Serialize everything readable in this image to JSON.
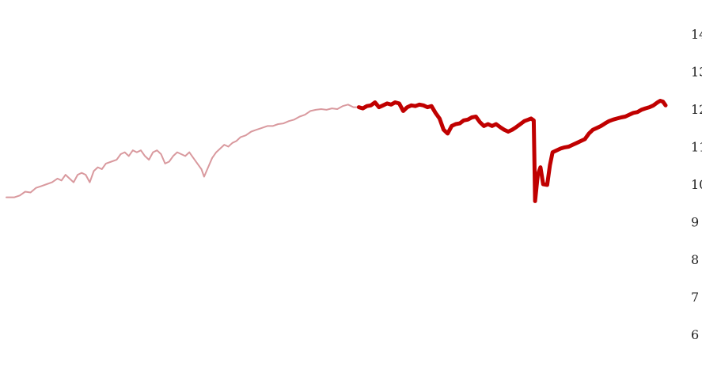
{
  "chart_data": {
    "type": "line",
    "title": "",
    "xlabel": "",
    "ylabel": "",
    "yaxis": {
      "position": "right",
      "ticks": [
        6,
        7,
        8,
        9,
        10,
        11,
        12,
        13,
        14
      ],
      "tick_labels": [
        "6",
        "7",
        "8",
        "9",
        "10",
        "11",
        "12",
        "13",
        "14"
      ],
      "range": [
        5.85,
        14.7
      ]
    },
    "xaxis": {
      "range": [
        0,
        1
      ],
      "labels_visible": false
    },
    "grid": false,
    "legend": "none",
    "colors": {
      "history": "#d9999e",
      "current": "#c00000"
    },
    "series": [
      {
        "role": "history",
        "points": [
          [
            0.0,
            9.65
          ],
          [
            0.012,
            9.65
          ],
          [
            0.02,
            9.7
          ],
          [
            0.028,
            9.8
          ],
          [
            0.036,
            9.78
          ],
          [
            0.044,
            9.9
          ],
          [
            0.052,
            9.95
          ],
          [
            0.06,
            10.0
          ],
          [
            0.068,
            10.05
          ],
          [
            0.076,
            10.15
          ],
          [
            0.082,
            10.1
          ],
          [
            0.088,
            10.25
          ],
          [
            0.094,
            10.15
          ],
          [
            0.1,
            10.05
          ],
          [
            0.106,
            10.25
          ],
          [
            0.112,
            10.3
          ],
          [
            0.118,
            10.25
          ],
          [
            0.124,
            10.05
          ],
          [
            0.13,
            10.35
          ],
          [
            0.136,
            10.45
          ],
          [
            0.142,
            10.4
          ],
          [
            0.148,
            10.55
          ],
          [
            0.156,
            10.6
          ],
          [
            0.164,
            10.65
          ],
          [
            0.17,
            10.8
          ],
          [
            0.176,
            10.85
          ],
          [
            0.182,
            10.75
          ],
          [
            0.188,
            10.9
          ],
          [
            0.194,
            10.85
          ],
          [
            0.2,
            10.9
          ],
          [
            0.206,
            10.75
          ],
          [
            0.212,
            10.65
          ],
          [
            0.218,
            10.85
          ],
          [
            0.224,
            10.9
          ],
          [
            0.23,
            10.8
          ],
          [
            0.236,
            10.55
          ],
          [
            0.242,
            10.6
          ],
          [
            0.248,
            10.75
          ],
          [
            0.254,
            10.85
          ],
          [
            0.26,
            10.8
          ],
          [
            0.266,
            10.75
          ],
          [
            0.272,
            10.85
          ],
          [
            0.278,
            10.7
          ],
          [
            0.284,
            10.55
          ],
          [
            0.29,
            10.4
          ],
          [
            0.294,
            10.2
          ],
          [
            0.3,
            10.45
          ],
          [
            0.306,
            10.7
          ],
          [
            0.312,
            10.85
          ],
          [
            0.318,
            10.95
          ],
          [
            0.324,
            11.05
          ],
          [
            0.33,
            11.0
          ],
          [
            0.336,
            11.1
          ],
          [
            0.342,
            11.15
          ],
          [
            0.348,
            11.25
          ],
          [
            0.356,
            11.3
          ],
          [
            0.364,
            11.4
          ],
          [
            0.372,
            11.45
          ],
          [
            0.38,
            11.5
          ],
          [
            0.388,
            11.55
          ],
          [
            0.396,
            11.55
          ],
          [
            0.404,
            11.6
          ],
          [
            0.412,
            11.62
          ],
          [
            0.42,
            11.68
          ],
          [
            0.428,
            11.72
          ],
          [
            0.436,
            11.8
          ],
          [
            0.444,
            11.85
          ],
          [
            0.452,
            11.95
          ],
          [
            0.46,
            11.98
          ],
          [
            0.468,
            12.0
          ],
          [
            0.476,
            11.98
          ],
          [
            0.484,
            12.02
          ],
          [
            0.492,
            12.0
          ],
          [
            0.5,
            12.08
          ],
          [
            0.508,
            12.12
          ],
          [
            0.516,
            12.05
          ],
          [
            0.524,
            12.05
          ]
        ]
      },
      {
        "role": "current",
        "points": [
          [
            0.524,
            12.05
          ],
          [
            0.53,
            12.02
          ],
          [
            0.536,
            12.08
          ],
          [
            0.542,
            12.1
          ],
          [
            0.548,
            12.18
          ],
          [
            0.554,
            12.05
          ],
          [
            0.56,
            12.1
          ],
          [
            0.566,
            12.15
          ],
          [
            0.572,
            12.12
          ],
          [
            0.578,
            12.18
          ],
          [
            0.584,
            12.15
          ],
          [
            0.59,
            11.95
          ],
          [
            0.596,
            12.05
          ],
          [
            0.602,
            12.1
          ],
          [
            0.608,
            12.08
          ],
          [
            0.614,
            12.12
          ],
          [
            0.62,
            12.1
          ],
          [
            0.626,
            12.05
          ],
          [
            0.632,
            12.08
          ],
          [
            0.638,
            11.9
          ],
          [
            0.644,
            11.75
          ],
          [
            0.65,
            11.45
          ],
          [
            0.656,
            11.35
          ],
          [
            0.662,
            11.55
          ],
          [
            0.668,
            11.6
          ],
          [
            0.674,
            11.62
          ],
          [
            0.68,
            11.7
          ],
          [
            0.686,
            11.72
          ],
          [
            0.692,
            11.78
          ],
          [
            0.698,
            11.8
          ],
          [
            0.704,
            11.65
          ],
          [
            0.71,
            11.55
          ],
          [
            0.716,
            11.6
          ],
          [
            0.722,
            11.55
          ],
          [
            0.728,
            11.6
          ],
          [
            0.734,
            11.52
          ],
          [
            0.74,
            11.45
          ],
          [
            0.746,
            11.4
          ],
          [
            0.752,
            11.45
          ],
          [
            0.758,
            11.52
          ],
          [
            0.764,
            11.6
          ],
          [
            0.77,
            11.68
          ],
          [
            0.776,
            11.72
          ],
          [
            0.78,
            11.75
          ],
          [
            0.784,
            11.7
          ],
          [
            0.786,
            9.55
          ],
          [
            0.79,
            10.25
          ],
          [
            0.794,
            10.45
          ],
          [
            0.798,
            10.0
          ],
          [
            0.804,
            9.98
          ],
          [
            0.808,
            10.5
          ],
          [
            0.812,
            10.85
          ],
          [
            0.818,
            10.9
          ],
          [
            0.824,
            10.95
          ],
          [
            0.83,
            10.98
          ],
          [
            0.836,
            11.0
          ],
          [
            0.842,
            11.05
          ],
          [
            0.848,
            11.1
          ],
          [
            0.854,
            11.15
          ],
          [
            0.86,
            11.2
          ],
          [
            0.866,
            11.35
          ],
          [
            0.872,
            11.45
          ],
          [
            0.878,
            11.5
          ],
          [
            0.884,
            11.55
          ],
          [
            0.89,
            11.62
          ],
          [
            0.896,
            11.68
          ],
          [
            0.902,
            11.72
          ],
          [
            0.908,
            11.75
          ],
          [
            0.914,
            11.78
          ],
          [
            0.92,
            11.8
          ],
          [
            0.926,
            11.85
          ],
          [
            0.932,
            11.9
          ],
          [
            0.938,
            11.92
          ],
          [
            0.944,
            11.98
          ],
          [
            0.95,
            12.02
          ],
          [
            0.956,
            12.05
          ],
          [
            0.962,
            12.1
          ],
          [
            0.968,
            12.18
          ],
          [
            0.972,
            12.22
          ],
          [
            0.976,
            12.2
          ],
          [
            0.98,
            12.1
          ]
        ]
      }
    ]
  }
}
